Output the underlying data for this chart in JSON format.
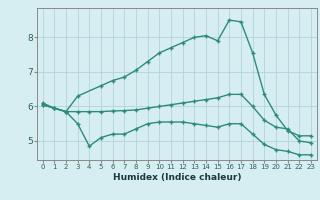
{
  "xlabel": "Humidex (Indice chaleur)",
  "bg_color": "#d6eef2",
  "line_color": "#2e8b7a",
  "grid_color": "#b0d4db",
  "x_ticks": [
    0,
    1,
    2,
    3,
    4,
    5,
    6,
    7,
    8,
    9,
    10,
    11,
    12,
    13,
    14,
    15,
    16,
    17,
    18,
    19,
    20,
    21,
    22,
    23
  ],
  "y_ticks": [
    5,
    6,
    7,
    8
  ],
  "ylim": [
    4.45,
    8.85
  ],
  "xlim": [
    -0.5,
    23.5
  ],
  "line1_x": [
    0,
    1,
    2,
    3,
    5,
    6,
    7,
    8,
    9,
    10,
    11,
    12,
    13,
    14,
    15,
    16,
    17,
    18,
    19,
    20,
    21,
    22,
    23
  ],
  "line1_y": [
    6.1,
    5.95,
    5.85,
    6.3,
    6.6,
    6.75,
    6.85,
    7.05,
    7.3,
    7.55,
    7.7,
    7.85,
    8.0,
    8.05,
    7.9,
    8.5,
    8.45,
    7.55,
    6.35,
    5.75,
    5.3,
    5.15,
    5.15
  ],
  "line2_x": [
    0,
    1,
    2,
    3,
    4,
    5,
    6,
    7,
    8,
    9,
    10,
    11,
    12,
    13,
    14,
    15,
    16,
    17,
    18,
    19,
    20,
    21,
    22,
    23
  ],
  "line2_y": [
    6.05,
    5.95,
    5.85,
    5.85,
    5.85,
    5.85,
    5.87,
    5.88,
    5.9,
    5.95,
    6.0,
    6.05,
    6.1,
    6.15,
    6.2,
    6.25,
    6.35,
    6.35,
    6.0,
    5.6,
    5.4,
    5.35,
    5.0,
    4.95
  ],
  "line3_x": [
    0,
    1,
    2,
    3,
    4,
    5,
    6,
    7,
    8,
    9,
    10,
    11,
    12,
    13,
    14,
    15,
    16,
    17,
    18,
    19,
    20,
    21,
    22,
    23
  ],
  "line3_y": [
    6.05,
    5.95,
    5.85,
    5.5,
    4.85,
    5.1,
    5.2,
    5.2,
    5.35,
    5.5,
    5.55,
    5.55,
    5.55,
    5.5,
    5.45,
    5.4,
    5.5,
    5.5,
    5.2,
    4.9,
    4.75,
    4.7,
    4.6,
    4.6
  ],
  "marker": "+",
  "markersize": 3,
  "linewidth": 1.0
}
